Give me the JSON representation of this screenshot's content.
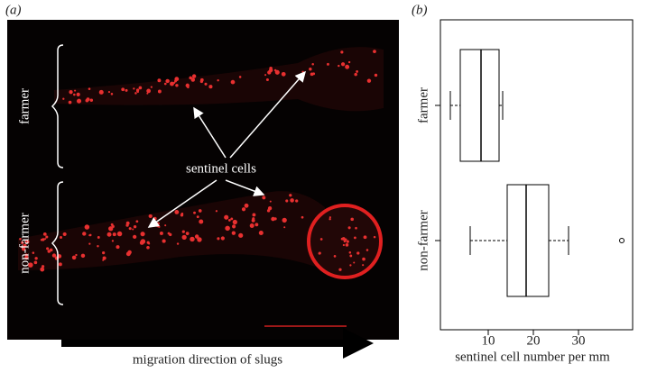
{
  "panel_a": {
    "label": "(a)",
    "group_labels": [
      "farmer",
      "non-farmer"
    ],
    "annotation": "sentinel cells",
    "caption": "migration direction of slugs"
  },
  "chart_data": {
    "type": "boxplot",
    "panel_label": "(b)",
    "x_label": "sentinel cell number per mm",
    "categories": [
      "farmer",
      "non-farmer"
    ],
    "boxes": [
      {
        "min": 1.6,
        "q1": 3.8,
        "median": 8.4,
        "q3": 12.4,
        "max": 13.2,
        "outliers": []
      },
      {
        "min": 6,
        "q1": 14.2,
        "median": 18.4,
        "q3": 23.4,
        "max": 27.8,
        "outliers": [
          39.6
        ]
      }
    ],
    "xlim": [
      0,
      42
    ],
    "xticks": [
      10,
      20,
      30
    ],
    "color": "#000000"
  }
}
